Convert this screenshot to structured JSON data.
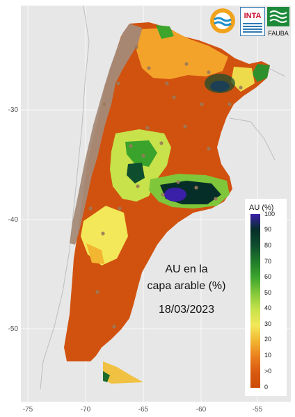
{
  "map": {
    "annotation": {
      "line1": "AU en la",
      "line2": "capa arable (%)",
      "date": "18/03/2023"
    },
    "axes": {
      "x_ticks": [
        "-75",
        "-70",
        "-65",
        "-60",
        "-55"
      ],
      "y_ticks": [
        "-30",
        "-40",
        "-50"
      ]
    },
    "legend": {
      "title": "AU (%)",
      "labels": [
        "100",
        "90",
        "80",
        "70",
        "60",
        "50",
        "40",
        "30",
        "20",
        "10",
        ">0",
        "0"
      ],
      "colors": [
        "#3a1fa8",
        "#062e28",
        "#0f4d2f",
        "#1f7a2a",
        "#3aa32c",
        "#7fc63a",
        "#c7e24a",
        "#f3e85a",
        "#f2b631",
        "#ea7f1e",
        "#d85a10",
        "#cc4a08"
      ]
    },
    "logos": {
      "inta": "INTA",
      "fauba": "FAUBA"
    },
    "colors": {
      "background": "#e7e7e7",
      "land_dry": "#d1520f",
      "mountains": "#a58a78"
    }
  }
}
